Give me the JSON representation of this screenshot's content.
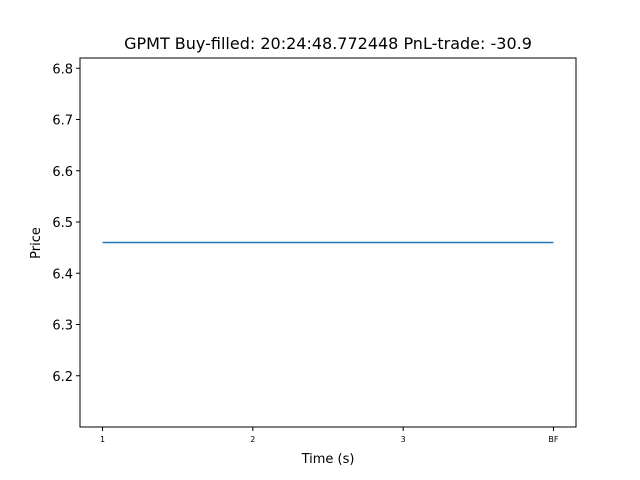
{
  "chart_data": {
    "type": "line",
    "title": "GPMT  Buy-filled:  20:24:48.772448  PnL-trade:  -30.9",
    "xlabel": "Time (s)",
    "ylabel": "Price",
    "x_categories": [
      "1",
      "2",
      "3",
      "BF"
    ],
    "xlim": [
      0.85,
      4.15
    ],
    "ylim": [
      6.1,
      6.82
    ],
    "y_ticks": [
      6.2,
      6.3,
      6.4,
      6.5,
      6.6,
      6.7,
      6.8
    ],
    "y_tick_labels": [
      "6.2",
      "6.3",
      "6.4",
      "6.5",
      "6.6",
      "6.7",
      "6.8"
    ],
    "series": [
      {
        "color": "#1f77b4",
        "x": [
          1,
          2,
          3,
          4
        ],
        "values": [
          6.46,
          6.46,
          6.46,
          6.46
        ]
      }
    ],
    "grid": false,
    "legend": "none"
  }
}
